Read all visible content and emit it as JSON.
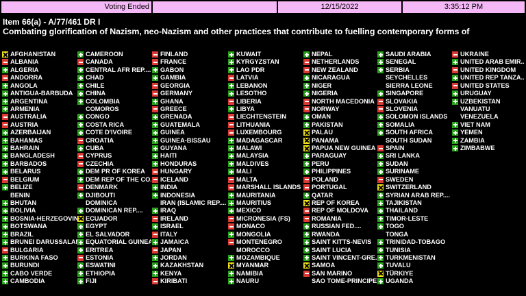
{
  "header": {
    "status": "Voting Ended",
    "blank": "",
    "date": "12/15/2022",
    "time": "3:35:12 PM"
  },
  "item": "Item 66(a) - A/77/461 DR I",
  "title": "Combating glorification of Nazism, neo-Nazism and other practices that contribute to fuelling contemporary forms of",
  "colors": {
    "yes": "#2aa11d",
    "no": "#d93a32",
    "abstain": "#f2e21c",
    "header_bg": "#f5b8f7"
  },
  "columns": [
    [
      {
        "name": "AFGHANISTAN",
        "vote": "abs"
      },
      {
        "name": "ALBANIA",
        "vote": "no"
      },
      {
        "name": "ALGERIA",
        "vote": "yes"
      },
      {
        "name": "ANDORRA",
        "vote": "no"
      },
      {
        "name": "ANGOLA",
        "vote": "yes"
      },
      {
        "name": "ANTIGUA-BARBUDA",
        "vote": "yes"
      },
      {
        "name": "ARGENTINA",
        "vote": "yes"
      },
      {
        "name": "ARMENIA",
        "vote": "yes"
      },
      {
        "name": "AUSTRALIA",
        "vote": "no"
      },
      {
        "name": "AUSTRIA",
        "vote": "no"
      },
      {
        "name": "AZERBAIJAN",
        "vote": "yes"
      },
      {
        "name": "BAHAMAS",
        "vote": "yes"
      },
      {
        "name": "BAHRAIN",
        "vote": "yes"
      },
      {
        "name": "BANGLADESH",
        "vote": "yes"
      },
      {
        "name": "BARBADOS",
        "vote": "yes"
      },
      {
        "name": "BELARUS",
        "vote": "yes"
      },
      {
        "name": "BELGIUM",
        "vote": "no"
      },
      {
        "name": "BELIZE",
        "vote": "yes"
      },
      {
        "name": "BENIN",
        "vote": ""
      },
      {
        "name": "BHUTAN",
        "vote": "yes"
      },
      {
        "name": "BOLIVIA",
        "vote": "yes"
      },
      {
        "name": "BOSNIA-HERZEGOVINA",
        "vote": "yes"
      },
      {
        "name": "BOTSWANA",
        "vote": "yes"
      },
      {
        "name": "BRAZIL",
        "vote": "yes"
      },
      {
        "name": "BRUNEI DARUSSALAM",
        "vote": "yes"
      },
      {
        "name": "BULGARIA",
        "vote": "no"
      },
      {
        "name": "BURKINA FASO",
        "vote": "yes"
      },
      {
        "name": "BURUNDI",
        "vote": "yes"
      },
      {
        "name": "CABO VERDE",
        "vote": "yes"
      },
      {
        "name": "CAMBODIA",
        "vote": "yes"
      }
    ],
    [
      {
        "name": "CAMEROON",
        "vote": "yes"
      },
      {
        "name": "CANADA",
        "vote": "no"
      },
      {
        "name": "CENTRAL AFR REP....",
        "vote": "yes"
      },
      {
        "name": "CHAD",
        "vote": "yes"
      },
      {
        "name": "CHILE",
        "vote": "yes"
      },
      {
        "name": "CHINA",
        "vote": "yes"
      },
      {
        "name": "COLOMBIA",
        "vote": "yes"
      },
      {
        "name": "COMOROS",
        "vote": ""
      },
      {
        "name": "CONGO",
        "vote": "yes"
      },
      {
        "name": "COSTA RICA",
        "vote": "yes"
      },
      {
        "name": "COTE D'IVOIRE",
        "vote": "yes"
      },
      {
        "name": "CROATIA",
        "vote": "no"
      },
      {
        "name": "CUBA",
        "vote": "yes"
      },
      {
        "name": "CYPRUS",
        "vote": "no"
      },
      {
        "name": "CZECHIA",
        "vote": "no"
      },
      {
        "name": "DEM PR OF KOREA",
        "vote": "yes"
      },
      {
        "name": "DEM REP OF THE CO...",
        "vote": "yes"
      },
      {
        "name": "DENMARK",
        "vote": "no"
      },
      {
        "name": "DJIBOUTI",
        "vote": "yes"
      },
      {
        "name": "DOMINICA",
        "vote": ""
      },
      {
        "name": "DOMINICAN REP....",
        "vote": "yes"
      },
      {
        "name": "ECUADOR",
        "vote": "abs"
      },
      {
        "name": "EGYPT",
        "vote": "yes"
      },
      {
        "name": "EL SALVADOR",
        "vote": "yes"
      },
      {
        "name": "EQUATORIAL GUINEA",
        "vote": "yes"
      },
      {
        "name": "ERITREA",
        "vote": "yes"
      },
      {
        "name": "ESTONIA",
        "vote": "no"
      },
      {
        "name": "ESWATINI",
        "vote": "yes"
      },
      {
        "name": "ETHIOPIA",
        "vote": "yes"
      },
      {
        "name": "FIJI",
        "vote": "yes"
      }
    ],
    [
      {
        "name": "FINLAND",
        "vote": "no"
      },
      {
        "name": "FRANCE",
        "vote": "no"
      },
      {
        "name": "GABON",
        "vote": "yes"
      },
      {
        "name": "GAMBIA",
        "vote": "yes"
      },
      {
        "name": "GEORGIA",
        "vote": "no"
      },
      {
        "name": "GERMANY",
        "vote": "no"
      },
      {
        "name": "GHANA",
        "vote": "yes"
      },
      {
        "name": "GREECE",
        "vote": "no"
      },
      {
        "name": "GRENADA",
        "vote": "yes"
      },
      {
        "name": "GUATEMALA",
        "vote": "yes"
      },
      {
        "name": "GUINEA",
        "vote": "yes"
      },
      {
        "name": "GUINEA-BISSAU",
        "vote": "yes"
      },
      {
        "name": "GUYANA",
        "vote": "yes"
      },
      {
        "name": "HAITI",
        "vote": "yes"
      },
      {
        "name": "HONDURAS",
        "vote": "yes"
      },
      {
        "name": "HUNGARY",
        "vote": "no"
      },
      {
        "name": "ICELAND",
        "vote": "no"
      },
      {
        "name": "INDIA",
        "vote": "yes"
      },
      {
        "name": "INDONESIA",
        "vote": "yes"
      },
      {
        "name": "IRAN (ISLAMIC REP....",
        "vote": ""
      },
      {
        "name": "IRAQ",
        "vote": "yes"
      },
      {
        "name": "IRELAND",
        "vote": "no"
      },
      {
        "name": "ISRAEL",
        "vote": "yes"
      },
      {
        "name": "ITALY",
        "vote": "no"
      },
      {
        "name": "JAMAICA",
        "vote": "yes"
      },
      {
        "name": "JAPAN",
        "vote": "no"
      },
      {
        "name": "JORDAN",
        "vote": "yes"
      },
      {
        "name": "KAZAKHSTAN",
        "vote": "yes"
      },
      {
        "name": "KENYA",
        "vote": "yes"
      },
      {
        "name": "KIRIBATI",
        "vote": "no"
      }
    ],
    [
      {
        "name": "KUWAIT",
        "vote": "yes"
      },
      {
        "name": "KYRGYZSTAN",
        "vote": "yes"
      },
      {
        "name": "LAO PDR",
        "vote": "yes"
      },
      {
        "name": "LATVIA",
        "vote": "no"
      },
      {
        "name": "LEBANON",
        "vote": "yes"
      },
      {
        "name": "LESOTHO",
        "vote": "yes"
      },
      {
        "name": "LIBERIA",
        "vote": "no"
      },
      {
        "name": "LIBYA",
        "vote": "yes"
      },
      {
        "name": "LIECHTENSTEIN",
        "vote": "no"
      },
      {
        "name": "LITHUANIA",
        "vote": "no"
      },
      {
        "name": "LUXEMBOURG",
        "vote": "no"
      },
      {
        "name": "MADAGASCAR",
        "vote": "yes"
      },
      {
        "name": "MALAWI",
        "vote": "yes"
      },
      {
        "name": "MALAYSIA",
        "vote": "yes"
      },
      {
        "name": "MALDIVES",
        "vote": "yes"
      },
      {
        "name": "MALI",
        "vote": "yes"
      },
      {
        "name": "MALTA",
        "vote": "no"
      },
      {
        "name": "MARSHALL ISLANDS",
        "vote": "no"
      },
      {
        "name": "MAURITANIA",
        "vote": "yes"
      },
      {
        "name": "MAURITIUS",
        "vote": "yes"
      },
      {
        "name": "MEXICO",
        "vote": "yes"
      },
      {
        "name": "MICRONESIA (FS)",
        "vote": "no"
      },
      {
        "name": "MONACO",
        "vote": "no"
      },
      {
        "name": "MONGOLIA",
        "vote": "yes"
      },
      {
        "name": "MONTENEGRO",
        "vote": "no"
      },
      {
        "name": "MOROCCO",
        "vote": ""
      },
      {
        "name": "MOZAMBIQUE",
        "vote": "yes"
      },
      {
        "name": "MYANMAR",
        "vote": "abs"
      },
      {
        "name": "NAMIBIA",
        "vote": "yes"
      },
      {
        "name": "NAURU",
        "vote": "yes"
      }
    ],
    [
      {
        "name": "NEPAL",
        "vote": "yes"
      },
      {
        "name": "NETHERLANDS",
        "vote": "no"
      },
      {
        "name": "NEW ZEALAND",
        "vote": "no"
      },
      {
        "name": "NICARAGUA",
        "vote": "yes"
      },
      {
        "name": "NIGER",
        "vote": "yes"
      },
      {
        "name": "NIGERIA",
        "vote": "yes"
      },
      {
        "name": "NORTH MACEDONIA",
        "vote": "no"
      },
      {
        "name": "NORWAY",
        "vote": "no"
      },
      {
        "name": "OMAN",
        "vote": "yes"
      },
      {
        "name": "PAKISTAN",
        "vote": "yes"
      },
      {
        "name": "PALAU",
        "vote": "abs"
      },
      {
        "name": "PANAMA",
        "vote": "abs"
      },
      {
        "name": "PAPUA NEW GUINEA",
        "vote": "abs"
      },
      {
        "name": "PARAGUAY",
        "vote": "yes"
      },
      {
        "name": "PERU",
        "vote": "yes"
      },
      {
        "name": "PHILIPPINES",
        "vote": "yes"
      },
      {
        "name": "POLAND",
        "vote": "no"
      },
      {
        "name": "PORTUGAL",
        "vote": "no"
      },
      {
        "name": "QATAR",
        "vote": "yes"
      },
      {
        "name": "REP OF KOREA",
        "vote": "abs"
      },
      {
        "name": "REP OF MOLDOVA",
        "vote": "no"
      },
      {
        "name": "ROMANIA",
        "vote": "no"
      },
      {
        "name": "RUSSIAN FED....",
        "vote": "yes"
      },
      {
        "name": "RWANDA",
        "vote": "yes"
      },
      {
        "name": "SAINT KITTS-NEVIS",
        "vote": "yes"
      },
      {
        "name": "SAINT LUCIA",
        "vote": "yes"
      },
      {
        "name": "SAINT VINCENT-GRE...",
        "vote": "yes"
      },
      {
        "name": "SAMOA",
        "vote": "abs"
      },
      {
        "name": "SAN MARINO",
        "vote": "no"
      },
      {
        "name": "SAO TOME-PRINCIPE",
        "vote": ""
      }
    ],
    [
      {
        "name": "SAUDI ARABIA",
        "vote": "yes"
      },
      {
        "name": "SENEGAL",
        "vote": "yes"
      },
      {
        "name": "SERBIA",
        "vote": "yes"
      },
      {
        "name": "SEYCHELLES",
        "vote": ""
      },
      {
        "name": "SIERRA LEONE",
        "vote": ""
      },
      {
        "name": "SINGAPORE",
        "vote": "yes"
      },
      {
        "name": "SLOVAKIA",
        "vote": "no"
      },
      {
        "name": "SLOVENIA",
        "vote": "no"
      },
      {
        "name": "SOLOMON ISLANDS",
        "vote": "yes"
      },
      {
        "name": "SOMALIA",
        "vote": "yes"
      },
      {
        "name": "SOUTH AFRICA",
        "vote": "yes"
      },
      {
        "name": "SOUTH SUDAN",
        "vote": ""
      },
      {
        "name": "SPAIN",
        "vote": "no"
      },
      {
        "name": "SRI LANKA",
        "vote": "yes"
      },
      {
        "name": "SUDAN",
        "vote": "yes"
      },
      {
        "name": "SURINAME",
        "vote": "yes"
      },
      {
        "name": "SWEDEN",
        "vote": "no"
      },
      {
        "name": "SWITZERLAND",
        "vote": "abs"
      },
      {
        "name": "SYRIAN ARAB REP....",
        "vote": "yes"
      },
      {
        "name": "TAJIKISTAN",
        "vote": "yes"
      },
      {
        "name": "THAILAND",
        "vote": "yes"
      },
      {
        "name": "TIMOR-LESTE",
        "vote": "yes"
      },
      {
        "name": "TOGO",
        "vote": "yes"
      },
      {
        "name": "TONGA",
        "vote": ""
      },
      {
        "name": "TRINIDAD-TOBAGO",
        "vote": "yes"
      },
      {
        "name": "TUNISIA",
        "vote": "yes"
      },
      {
        "name": "TURKMENISTAN",
        "vote": "yes"
      },
      {
        "name": "TUVALU",
        "vote": "yes"
      },
      {
        "name": "TÜRKIYE",
        "vote": "abs"
      },
      {
        "name": "UGANDA",
        "vote": "yes"
      }
    ],
    [
      {
        "name": "UKRAINE",
        "vote": "no"
      },
      {
        "name": "UNITED ARAB EMIR....",
        "vote": "yes"
      },
      {
        "name": "UNITED KINGDOM",
        "vote": "no"
      },
      {
        "name": "UNITED REP TANZA...",
        "vote": "yes"
      },
      {
        "name": "UNITED STATES",
        "vote": "no"
      },
      {
        "name": "URUGUAY",
        "vote": "yes"
      },
      {
        "name": "UZBEKISTAN",
        "vote": "yes"
      },
      {
        "name": "VANUATU",
        "vote": ""
      },
      {
        "name": "VENEZUELA",
        "vote": ""
      },
      {
        "name": "VIET NAM",
        "vote": "yes"
      },
      {
        "name": "YEMEN",
        "vote": "yes"
      },
      {
        "name": "ZAMBIA",
        "vote": "yes"
      },
      {
        "name": "ZIMBABWE",
        "vote": "yes"
      }
    ]
  ]
}
